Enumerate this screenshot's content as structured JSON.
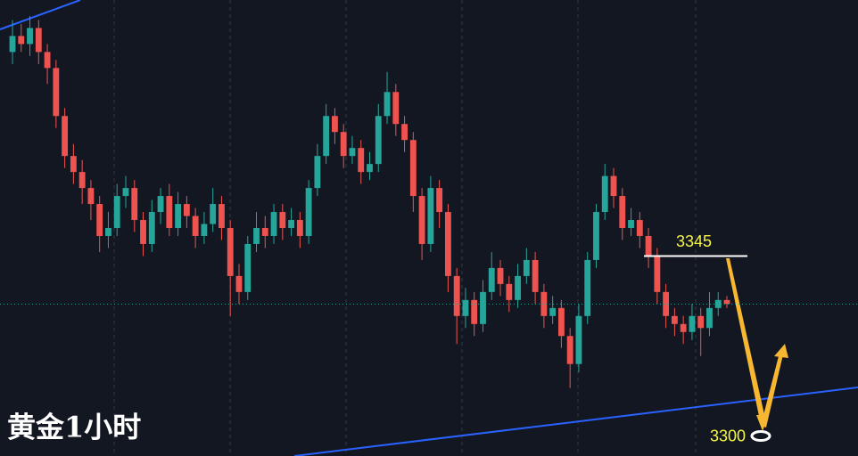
{
  "chart_data": {
    "type": "candlestick",
    "title": "黄金1小时",
    "up_color": "#26a69a",
    "down_color": "#ef5350",
    "level_color": "#f5f543",
    "ylim": [
      3295,
      3409
    ],
    "open": [
      3396,
      3400,
      3398,
      3402,
      3396,
      3392,
      3380,
      3370,
      3366,
      3362,
      3358,
      3350,
      3352,
      3360,
      3362,
      3354,
      3348,
      3356,
      3360,
      3352,
      3358,
      3355,
      3350,
      3353,
      3358,
      3352,
      3340,
      3336,
      3348,
      3352,
      3350,
      3356,
      3352,
      3354,
      3350,
      3362,
      3370,
      3380,
      3376,
      3370,
      3372,
      3366,
      3368,
      3380,
      3386,
      3378,
      3374,
      3360,
      3348,
      3362,
      3356,
      3340,
      3330,
      3334,
      3328,
      3336,
      3342,
      3338,
      3334,
      3340,
      3344,
      3336,
      3330,
      3332,
      3325,
      3318,
      3330,
      3344,
      3356,
      3365,
      3360,
      3352,
      3354,
      3350,
      3345,
      3336,
      3330,
      3328,
      3326,
      3330,
      3327,
      3332,
      3334
    ],
    "high": [
      3404,
      3403,
      3405,
      3404,
      3398,
      3394,
      3382,
      3373,
      3369,
      3364,
      3360,
      3356,
      3363,
      3365,
      3364,
      3356,
      3359,
      3362,
      3363,
      3361,
      3360,
      3357,
      3356,
      3362,
      3360,
      3354,
      3343,
      3350,
      3356,
      3355,
      3358,
      3358,
      3357,
      3356,
      3364,
      3373,
      3383,
      3382,
      3378,
      3375,
      3374,
      3371,
      3383,
      3391,
      3388,
      3380,
      3376,
      3362,
      3365,
      3364,
      3358,
      3342,
      3337,
      3336,
      3339,
      3346,
      3344,
      3340,
      3343,
      3347,
      3346,
      3338,
      3335,
      3334,
      3327,
      3333,
      3346,
      3358,
      3368,
      3367,
      3362,
      3357,
      3356,
      3352,
      3347,
      3338,
      3332,
      3330,
      3333,
      3332,
      3336,
      3336,
      3335
    ],
    "low": [
      3393,
      3396,
      3395,
      3393,
      3388,
      3377,
      3367,
      3363,
      3358,
      3354,
      3346,
      3347,
      3350,
      3357,
      3351,
      3345,
      3346,
      3353,
      3350,
      3350,
      3352,
      3347,
      3348,
      3351,
      3349,
      3330,
      3333,
      3334,
      3346,
      3347,
      3348,
      3349,
      3350,
      3347,
      3348,
      3360,
      3368,
      3373,
      3367,
      3368,
      3363,
      3364,
      3366,
      3378,
      3375,
      3371,
      3356,
      3344,
      3346,
      3352,
      3336,
      3323,
      3327,
      3325,
      3326,
      3334,
      3335,
      3331,
      3332,
      3338,
      3333,
      3327,
      3328,
      3322,
      3312,
      3316,
      3328,
      3342,
      3354,
      3357,
      3349,
      3350,
      3347,
      3342,
      3333,
      3327,
      3325,
      3323,
      3324,
      3320,
      3325,
      3330,
      3332
    ],
    "close": [
      3400,
      3398,
      3402,
      3396,
      3392,
      3380,
      3370,
      3366,
      3362,
      3358,
      3350,
      3352,
      3360,
      3362,
      3354,
      3348,
      3356,
      3360,
      3352,
      3358,
      3355,
      3350,
      3353,
      3358,
      3352,
      3340,
      3336,
      3348,
      3352,
      3350,
      3356,
      3352,
      3354,
      3350,
      3362,
      3370,
      3380,
      3376,
      3370,
      3372,
      3366,
      3368,
      3380,
      3386,
      3378,
      3374,
      3360,
      3348,
      3362,
      3356,
      3340,
      3330,
      3334,
      3328,
      3336,
      3342,
      3338,
      3334,
      3340,
      3344,
      3336,
      3330,
      3332,
      3325,
      3318,
      3330,
      3344,
      3356,
      3365,
      3360,
      3352,
      3354,
      3350,
      3345,
      3336,
      3330,
      3328,
      3326,
      3330,
      3327,
      3332,
      3334,
      3333
    ],
    "levels": [
      3345,
      3300
    ]
  }
}
